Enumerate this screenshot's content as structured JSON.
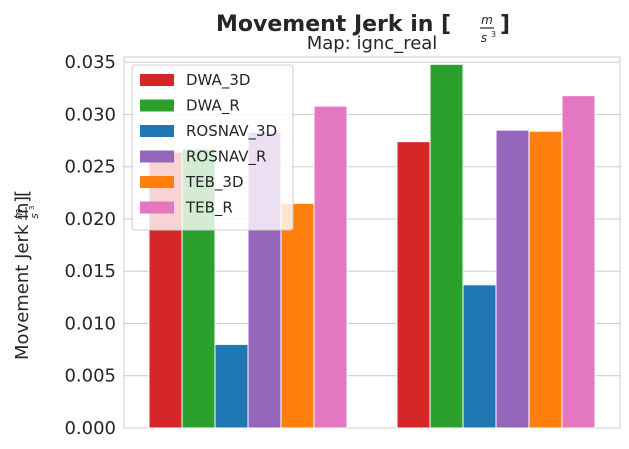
{
  "chart_data": {
    "type": "bar",
    "title": "Movement Jerk in [m/s³]",
    "subtitle": "Map: ignc_real",
    "ylabel": "Movement Jerk in [m/s³]",
    "xlabel": "",
    "ylim": [
      0,
      0.0355
    ],
    "yticks": [
      "0.000",
      "0.005",
      "0.010",
      "0.015",
      "0.020",
      "0.025",
      "0.030",
      "0.035"
    ],
    "ytick_values": [
      0.0,
      0.005,
      0.01,
      0.015,
      0.02,
      0.025,
      0.03,
      0.035
    ],
    "grid": true,
    "legend_position": "top-left",
    "group_count": 2,
    "series": [
      {
        "name": "DWA_3D",
        "color": "#d62728",
        "values": [
          0.0264,
          0.0274
        ]
      },
      {
        "name": "DWA_R",
        "color": "#2ca02c",
        "values": [
          0.0267,
          0.0348
        ]
      },
      {
        "name": "ROSNAV_3D",
        "color": "#1f77b4",
        "values": [
          0.008,
          0.0137
        ]
      },
      {
        "name": "ROSNAV_R",
        "color": "#9467bd",
        "values": [
          0.0283,
          0.0285
        ]
      },
      {
        "name": "TEB_3D",
        "color": "#ff7f0e",
        "values": [
          0.0215,
          0.0284
        ]
      },
      {
        "name": "TEB_R",
        "color": "#e377c2",
        "values": [
          0.0308,
          0.0318
        ]
      }
    ]
  }
}
